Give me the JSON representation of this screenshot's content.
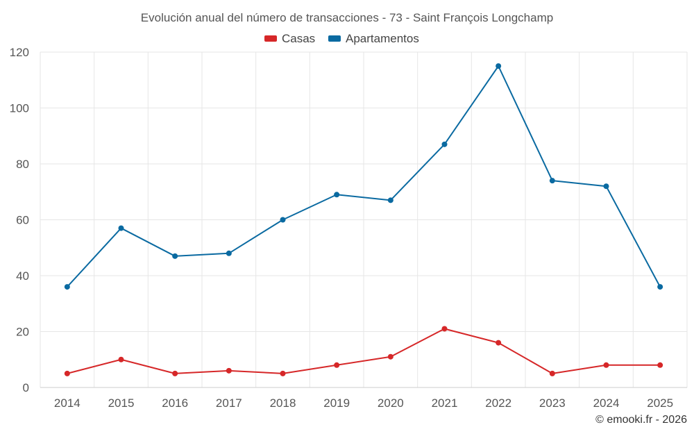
{
  "chart_data": {
    "type": "line",
    "title": "Evolución anual del número de transacciones - 73 - Saint François Longchamp",
    "categories": [
      "2014",
      "2015",
      "2016",
      "2017",
      "2018",
      "2019",
      "2020",
      "2021",
      "2022",
      "2023",
      "2024",
      "2025"
    ],
    "ylim": [
      0,
      120
    ],
    "yticks": [
      0,
      20,
      40,
      60,
      80,
      100,
      120
    ],
    "grid": true,
    "legend_position": "top-center",
    "series": [
      {
        "name": "Casas",
        "color": "#d62728",
        "values": [
          5,
          10,
          5,
          6,
          5,
          8,
          11,
          21,
          16,
          5,
          8,
          8
        ]
      },
      {
        "name": "Apartamentos",
        "color": "#0a6aa1",
        "values": [
          36,
          57,
          47,
          48,
          60,
          69,
          67,
          87,
          115,
          74,
          72,
          36
        ]
      }
    ]
  },
  "credit": "© emooki.fr - 2026"
}
